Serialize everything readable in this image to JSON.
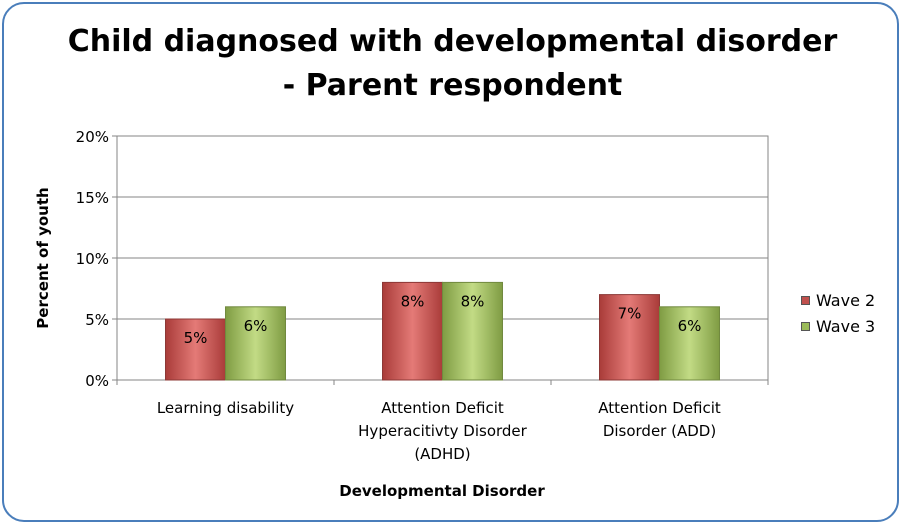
{
  "chart_data": {
    "type": "bar",
    "title_line1": "Child diagnosed with developmental disorder",
    "title_line2": "- Parent respondent",
    "xlabel": "Developmental Disorder",
    "ylabel": "Percent of youth",
    "ylim": [
      0,
      20
    ],
    "yticks": [
      "0%",
      "5%",
      "10%",
      "15%",
      "20%"
    ],
    "categories": [
      [
        "Learning disability"
      ],
      [
        "Attention Deficit",
        "Hyperacitivty Disorder",
        "(ADHD)"
      ],
      [
        "Attention Deficit",
        "Disorder (ADD)"
      ]
    ],
    "series": [
      {
        "name": "Wave 2",
        "values": [
          5,
          8,
          7
        ],
        "labels": [
          "5%",
          "8%",
          "7%"
        ],
        "color": "#c0504d"
      },
      {
        "name": "Wave 3",
        "values": [
          6,
          8,
          6
        ],
        "labels": [
          "6%",
          "8%",
          "6%"
        ],
        "color": "#9bbb59"
      }
    ],
    "grid": true,
    "legend_position": "right"
  }
}
